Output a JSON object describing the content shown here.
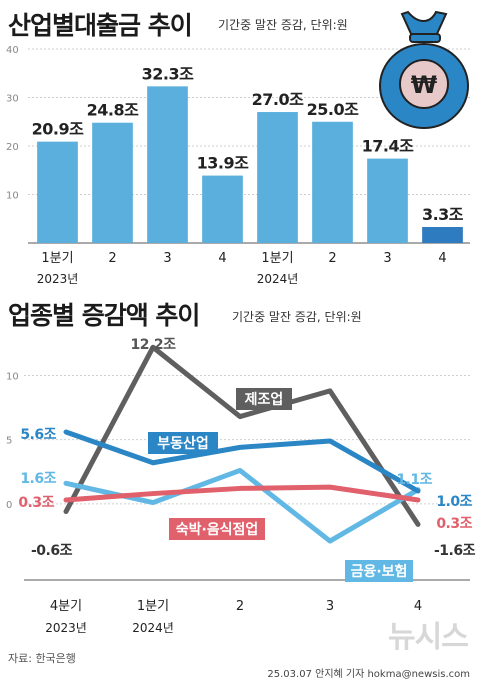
{
  "chart1": {
    "title": "산업별대출금 추이",
    "subtitle": "기간중 말잔 증감, 단위:원"
  },
  "chart2": {
    "title": "업종별 증감액 추이",
    "subtitle": "기간중 말잔 증감, 단위:원"
  },
  "source": "자료: 한국은행",
  "credit": "25.03.07 안지혜 기자 hokma@newsis.com",
  "watermark": "뉴시스",
  "colors": {
    "bar": "#5aafdc",
    "bar_last": "#2f7bbf",
    "manufacturing": "#5f5f5f",
    "real_estate": "#2b86c5",
    "finance": "#62b8e4",
    "hospitality": "#e0606c",
    "money_bag": "#2b86c5"
  },
  "icons": [
    "money-bag-won-icon"
  ],
  "chart_data": [
    {
      "type": "bar",
      "categories": [
        "1분기",
        "2",
        "3",
        "4",
        "1분기",
        "2",
        "3",
        "4"
      ],
      "group_labels": [
        "2023년",
        "2024년"
      ],
      "values": [
        20.9,
        24.8,
        32.3,
        13.9,
        27.0,
        25.0,
        17.4,
        3.3
      ],
      "value_labels": [
        "20.9조",
        "24.8조",
        "32.3조",
        "13.9조",
        "27.0조",
        "25.0조",
        "17.4조",
        "3.3조"
      ],
      "yticks": [
        "10",
        "20",
        "30",
        "40"
      ],
      "ylim": [
        0,
        40
      ],
      "grid": true
    },
    {
      "type": "line",
      "categories": [
        "4분기",
        "1분기",
        "2",
        "3",
        "4"
      ],
      "group_labels": [
        "2023년",
        "2024년"
      ],
      "yticks": [
        "0",
        "5",
        "10"
      ],
      "ylim": [
        -5,
        13
      ],
      "grid": true,
      "series": [
        {
          "name": "제조업",
          "values": [
            -0.6,
            12.2,
            6.8,
            8.8,
            -1.6
          ],
          "start_label": "-0.6조",
          "peak_label": "12.2조",
          "end_label": "-1.6조"
        },
        {
          "name": "부동산업",
          "values": [
            5.6,
            3.2,
            4.4,
            4.9,
            1.0
          ],
          "start_label": "5.6조",
          "end_label": "1.0조"
        },
        {
          "name": "금융·보험",
          "values": [
            1.6,
            0.1,
            2.6,
            -2.9,
            1.1
          ],
          "start_label": "1.6조",
          "end_label": "1.1조"
        },
        {
          "name": "숙박·음식점업",
          "values": [
            0.3,
            0.8,
            1.2,
            1.3,
            0.3
          ],
          "start_label": "0.3조",
          "end_label": "0.3조"
        }
      ]
    }
  ]
}
